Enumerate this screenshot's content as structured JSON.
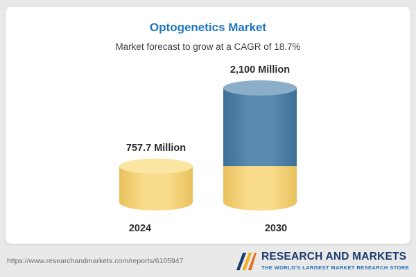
{
  "header": {
    "title_color": "#1d76bd"
  },
  "chart_data": {
    "type": "bar",
    "subtype": "stacked-cylinder",
    "title": "Optogenetics Market",
    "subtitle": "Market forecast to grow at a CAGR of 18.7%",
    "categories": [
      "2024",
      "2030"
    ],
    "values": [
      757.7,
      2100
    ],
    "value_labels": [
      "757.7 Million",
      "2,100 Million"
    ],
    "ylim": [
      0,
      2100
    ],
    "grid": false,
    "legend": false,
    "colors": {
      "base_segment": "#f6d37a",
      "base_segment_top": "#fbe5a3",
      "growth_segment": "#4a7ea9",
      "growth_segment_top": "#8cafc9"
    },
    "layout_note": "2030 bar is stacked: yellow base equals 2024 value height, blue portion is growth"
  },
  "footer": {
    "url": "https://www.researchandmarkets.com/reports/6105947",
    "logo": {
      "line1": "RESEARCH AND MARKETS",
      "tagline": "THE WORLD'S LARGEST MARKET RESEARCH STORE",
      "navy": "#1b3a6b",
      "blue": "#2173b8",
      "gold": "#f2b01e",
      "orange": "#e46d1b"
    }
  }
}
